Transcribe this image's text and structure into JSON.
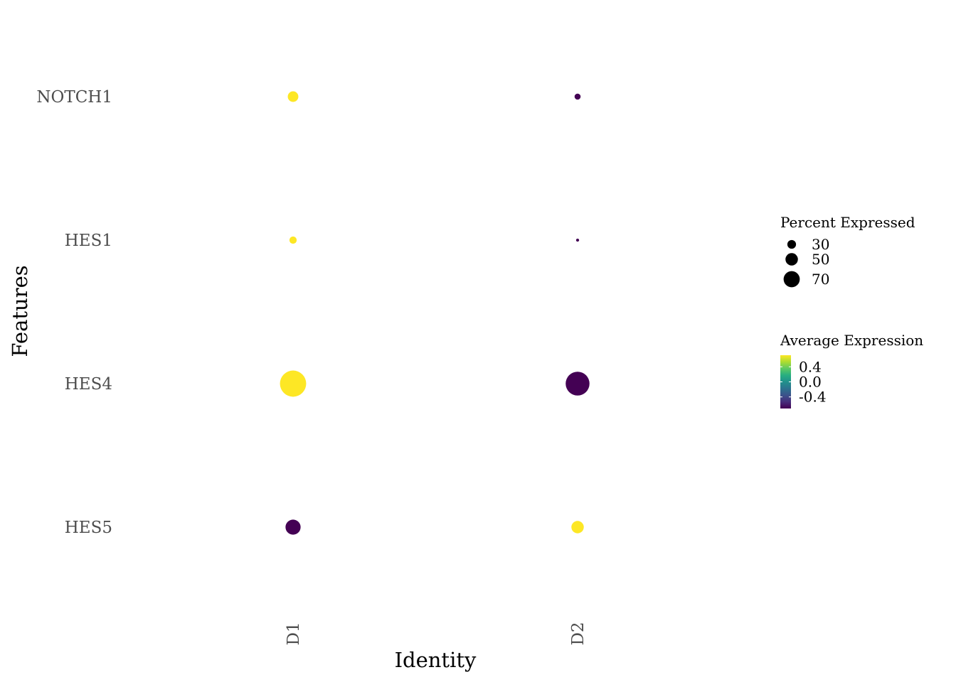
{
  "chart_data": {
    "type": "dot",
    "xlabel": "Identity",
    "ylabel": "Features",
    "categories": [
      "D1",
      "D2"
    ],
    "features": [
      "NOTCH1",
      "HES1",
      "HES4",
      "HES5"
    ],
    "points": [
      {
        "feature": "NOTCH1",
        "identity": "D1",
        "pct_expressed": 30,
        "avg_expression": 0.707,
        "color": "#fde725"
      },
      {
        "feature": "NOTCH1",
        "identity": "D2",
        "pct_expressed": 15,
        "avg_expression": -0.707,
        "color": "#440154"
      },
      {
        "feature": "HES1",
        "identity": "D1",
        "pct_expressed": 19,
        "avg_expression": 0.707,
        "color": "#fde725"
      },
      {
        "feature": "HES1",
        "identity": "D2",
        "pct_expressed": 5,
        "avg_expression": -0.707,
        "color": "#440154"
      },
      {
        "feature": "HES4",
        "identity": "D1",
        "pct_expressed": 82,
        "avg_expression": 0.707,
        "color": "#fde725"
      },
      {
        "feature": "HES4",
        "identity": "D2",
        "pct_expressed": 74,
        "avg_expression": -0.707,
        "color": "#440154"
      },
      {
        "feature": "HES5",
        "identity": "D1",
        "pct_expressed": 45,
        "avg_expression": -0.707,
        "color": "#440154"
      },
      {
        "feature": "HES5",
        "identity": "D2",
        "pct_expressed": 36,
        "avg_expression": 0.707,
        "color": "#fde725"
      }
    ],
    "size_legend": {
      "title": "Percent Expressed",
      "entries": [
        {
          "label": "30",
          "value": 30
        },
        {
          "label": "50",
          "value": 50
        },
        {
          "label": "70",
          "value": 70
        }
      ]
    },
    "color_legend": {
      "title": "Average Expression",
      "labels": [
        "0.4",
        "0.0",
        "-0.4"
      ],
      "values": [
        0.4,
        0.0,
        -0.4
      ],
      "range": [
        -0.707,
        0.707
      ],
      "colormap": "viridis",
      "low_color": "#440154",
      "high_color": "#fde725"
    },
    "grid": false
  }
}
